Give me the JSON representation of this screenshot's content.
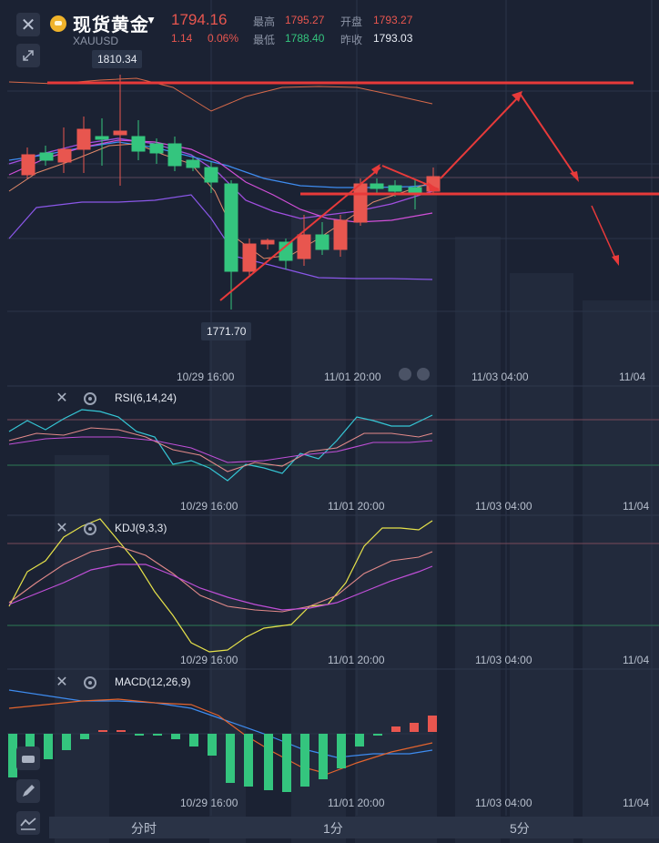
{
  "header": {
    "close_icon": "close-icon",
    "title": "现货黄金",
    "symbol": "XAUUSD",
    "price": "1794.16",
    "change": "1.14",
    "change_pct": "0.06%",
    "high_label": "最高",
    "high_value": "1795.27",
    "open_label": "开盘",
    "open_value": "1793.27",
    "low_label": "最低",
    "low_value": "1788.40",
    "prev_label": "昨收",
    "prev_value": "1793.03"
  },
  "main_chart": {
    "high_tag": "1810.34",
    "low_tag": "1771.70",
    "time_labels": [
      "10/29 16:00",
      "11/01 20:00",
      "11/03 04:00",
      "11/04"
    ]
  },
  "indicators": {
    "rsi": {
      "title": "RSI(6,14,24)",
      "time_labels": [
        "10/29 16:00",
        "11/01 20:00",
        "11/03 04:00",
        "11/04"
      ]
    },
    "kdj": {
      "title": "KDJ(9,3,3)",
      "time_labels": [
        "10/29 16:00",
        "11/01 20:00",
        "11/03 04:00",
        "11/04"
      ]
    },
    "macd": {
      "title": "MACD(12,26,9)",
      "time_labels": [
        "10/29 16:00",
        "11/01 20:00",
        "11/03 04:00",
        "11/04"
      ]
    }
  },
  "bottom_tabs": [
    "分时",
    "1分",
    "5分"
  ],
  "colors": {
    "up": "#e8564f",
    "down": "#34c57e",
    "bg": "#1b2233",
    "annotation": "#e83a3a"
  }
}
